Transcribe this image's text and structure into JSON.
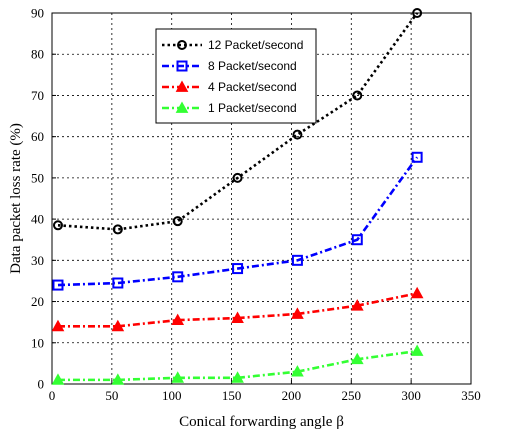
{
  "chart_data": {
    "type": "line",
    "title": "",
    "xlabel": "Conical forwarding angle β",
    "ylabel": "Data packet loss rate (%)",
    "xlim": [
      0,
      350
    ],
    "ylim": [
      0,
      90
    ],
    "x_ticks": [
      0,
      50,
      100,
      150,
      200,
      250,
      300,
      350
    ],
    "y_ticks": [
      0,
      10,
      20,
      30,
      40,
      50,
      60,
      70,
      80,
      90
    ],
    "grid": true,
    "legend_position": "top-center",
    "x": [
      5,
      55,
      105,
      155,
      205,
      255,
      305
    ],
    "series": [
      {
        "name": "12 Packet/second",
        "values": [
          38.5,
          37.5,
          39.5,
          50,
          60.5,
          70,
          90
        ],
        "color": "#000000",
        "marker": "circle"
      },
      {
        "name": "8 Packet/second",
        "values": [
          24,
          24.5,
          26,
          28,
          30,
          35,
          55
        ],
        "color": "#0000ff",
        "marker": "square"
      },
      {
        "name": "4 Packet/second",
        "values": [
          14,
          14,
          15.5,
          16,
          17,
          19,
          22
        ],
        "color": "#ff0000",
        "marker": "triangle"
      },
      {
        "name": "1 Packet/second",
        "values": [
          1,
          1,
          1.5,
          1.5,
          3,
          6,
          8
        ],
        "color": "#33ff33",
        "marker": "triangle"
      }
    ]
  }
}
